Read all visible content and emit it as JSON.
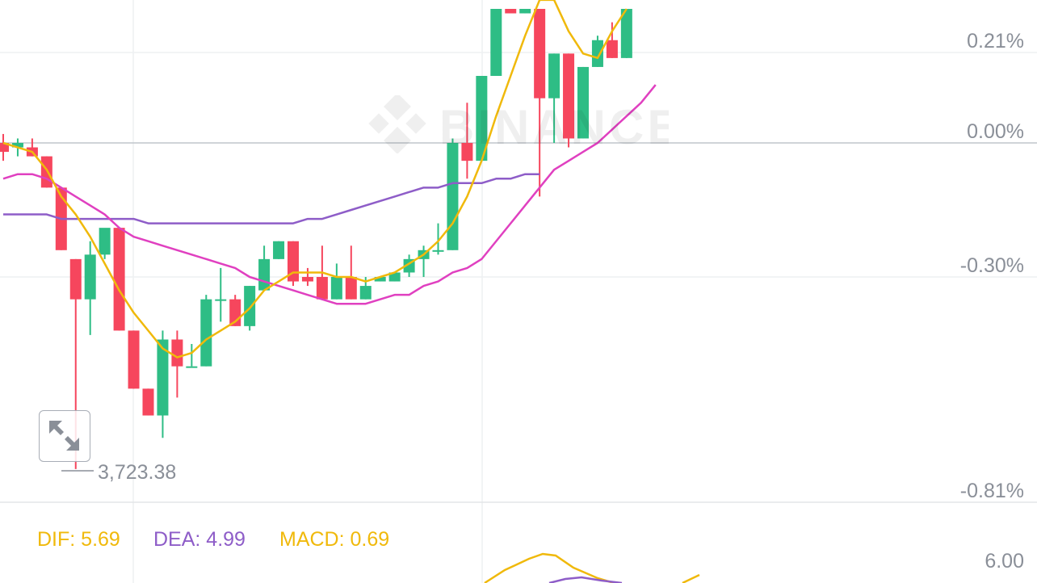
{
  "chart_data": {
    "type": "candlestick",
    "y_axis_labels": [
      {
        "label": "0.21%",
        "value": 0.21
      },
      {
        "label": "0.00%",
        "value": 0.0
      },
      {
        "label": "-0.30%",
        "value": -0.3
      },
      {
        "label": "-0.81%",
        "value": -0.81
      }
    ],
    "baseline_pct": 0.0,
    "low_marker_label": "3,723.38",
    "candles": [
      {
        "o": 0.0,
        "h": 0.02,
        "l": -0.04,
        "c": -0.02
      },
      {
        "o": -0.01,
        "h": 0.01,
        "l": -0.03,
        "c": 0.0
      },
      {
        "o": -0.01,
        "h": 0.01,
        "l": -0.03,
        "c": -0.03
      },
      {
        "o": -0.03,
        "h": -0.03,
        "l": -0.1,
        "c": -0.1
      },
      {
        "o": -0.1,
        "h": -0.11,
        "l": -0.24,
        "c": -0.24
      },
      {
        "o": -0.26,
        "h": -0.26,
        "l": -0.73,
        "c": -0.35
      },
      {
        "o": -0.35,
        "h": -0.22,
        "l": -0.43,
        "c": -0.25
      },
      {
        "o": -0.25,
        "h": -0.2,
        "l": -0.26,
        "c": -0.19
      },
      {
        "o": -0.19,
        "h": -0.19,
        "l": -0.42,
        "c": -0.42
      },
      {
        "o": -0.42,
        "h": -0.42,
        "l": -0.55,
        "c": -0.55
      },
      {
        "o": -0.55,
        "h": -0.55,
        "l": -0.61,
        "c": -0.61
      },
      {
        "o": -0.61,
        "h": -0.42,
        "l": -0.66,
        "c": -0.44
      },
      {
        "o": -0.44,
        "h": -0.42,
        "l": -0.57,
        "c": -0.5
      },
      {
        "o": -0.5,
        "h": -0.45,
        "l": -0.5,
        "c": -0.5
      },
      {
        "o": -0.5,
        "h": -0.34,
        "l": -0.5,
        "c": -0.35
      },
      {
        "o": -0.35,
        "h": -0.28,
        "l": -0.4,
        "c": -0.35
      },
      {
        "o": -0.35,
        "h": -0.34,
        "l": -0.41,
        "c": -0.41
      },
      {
        "o": -0.41,
        "h": -0.32,
        "l": -0.42,
        "c": -0.32
      },
      {
        "o": -0.33,
        "h": -0.23,
        "l": -0.33,
        "c": -0.26
      },
      {
        "o": -0.26,
        "h": -0.22,
        "l": -0.26,
        "c": -0.22
      },
      {
        "o": -0.22,
        "h": -0.22,
        "l": -0.32,
        "c": -0.31
      },
      {
        "o": -0.3,
        "h": -0.28,
        "l": -0.32,
        "c": -0.31
      },
      {
        "o": -0.3,
        "h": -0.23,
        "l": -0.35,
        "c": -0.35
      },
      {
        "o": -0.35,
        "h": -0.27,
        "l": -0.35,
        "c": -0.3
      },
      {
        "o": -0.3,
        "h": -0.23,
        "l": -0.35,
        "c": -0.35
      },
      {
        "o": -0.35,
        "h": -0.3,
        "l": -0.35,
        "c": -0.32
      },
      {
        "o": -0.31,
        "h": -0.3,
        "l": -0.31,
        "c": -0.3
      },
      {
        "o": -0.31,
        "h": -0.3,
        "l": -0.31,
        "c": -0.29
      },
      {
        "o": -0.29,
        "h": -0.25,
        "l": -0.3,
        "c": -0.26
      },
      {
        "o": -0.26,
        "h": -0.23,
        "l": -0.3,
        "c": -0.24
      },
      {
        "o": -0.24,
        "h": -0.18,
        "l": -0.25,
        "c": -0.24
      },
      {
        "o": -0.24,
        "h": 0.01,
        "l": -0.24,
        "c": 0.0
      },
      {
        "o": 0.0,
        "h": 0.09,
        "l": -0.08,
        "c": -0.04
      },
      {
        "o": -0.04,
        "h": 0.15,
        "l": -0.04,
        "c": 0.15
      },
      {
        "o": 0.15,
        "h": 0.3,
        "l": 0.15,
        "c": 0.3
      },
      {
        "o": 0.3,
        "h": 0.3,
        "l": 0.3,
        "c": 0.29
      },
      {
        "o": 0.29,
        "h": 0.3,
        "l": 0.29,
        "c": 0.3
      },
      {
        "o": 0.3,
        "h": 0.3,
        "l": -0.12,
        "c": 0.1
      },
      {
        "o": 0.1,
        "h": 0.2,
        "l": 0.0,
        "c": 0.2
      },
      {
        "o": 0.2,
        "h": 0.2,
        "l": -0.01,
        "c": 0.01
      },
      {
        "o": 0.01,
        "h": 0.17,
        "l": 0.01,
        "c": 0.17
      },
      {
        "o": 0.17,
        "h": 0.24,
        "l": 0.17,
        "c": 0.23
      },
      {
        "o": 0.23,
        "h": 0.27,
        "l": 0.19,
        "c": 0.19
      },
      {
        "o": 0.19,
        "h": 0.3,
        "l": 0.19,
        "c": 0.3
      }
    ],
    "ma_yellow": [
      0.0,
      -0.01,
      -0.02,
      -0.06,
      -0.12,
      -0.16,
      -0.21,
      -0.27,
      -0.33,
      -0.38,
      -0.42,
      -0.46,
      -0.48,
      -0.47,
      -0.44,
      -0.42,
      -0.4,
      -0.37,
      -0.33,
      -0.31,
      -0.29,
      -0.29,
      -0.29,
      -0.3,
      -0.3,
      -0.31,
      -0.3,
      -0.29,
      -0.27,
      -0.25,
      -0.22,
      -0.18,
      -0.12,
      -0.04,
      0.06,
      0.15,
      0.24,
      0.32,
      0.32,
      0.25,
      0.2,
      0.19,
      0.25,
      0.3
    ],
    "ma_magenta": [
      -0.08,
      -0.07,
      -0.07,
      -0.08,
      -0.1,
      -0.12,
      -0.14,
      -0.16,
      -0.19,
      -0.21,
      -0.22,
      -0.23,
      -0.24,
      -0.25,
      -0.26,
      -0.27,
      -0.28,
      -0.3,
      -0.31,
      -0.32,
      -0.33,
      -0.34,
      -0.35,
      -0.36,
      -0.36,
      -0.36,
      -0.35,
      -0.34,
      -0.34,
      -0.32,
      -0.31,
      -0.29,
      -0.28,
      -0.26,
      -0.22,
      -0.18,
      -0.14,
      -0.1,
      -0.06,
      -0.04,
      -0.02,
      0.0,
      0.03,
      0.06,
      0.09,
      0.13
    ],
    "ma_purple": [
      -0.16,
      -0.16,
      -0.16,
      -0.16,
      -0.17,
      -0.17,
      -0.17,
      -0.17,
      -0.17,
      -0.17,
      -0.18,
      -0.18,
      -0.18,
      -0.18,
      -0.18,
      -0.18,
      -0.18,
      -0.18,
      -0.18,
      -0.18,
      -0.18,
      -0.17,
      -0.17,
      -0.16,
      -0.15,
      -0.14,
      -0.13,
      -0.12,
      -0.11,
      -0.1,
      -0.1,
      -0.09,
      -0.09,
      -0.09,
      -0.08,
      -0.08,
      -0.07,
      -0.07
    ]
  },
  "macd": {
    "dif_label": "DIF: 5.69",
    "dea_label": "DEA: 4.99",
    "macd_label": "MACD: 0.69",
    "axis_label": "6.00"
  },
  "watermark": "BINANCE",
  "colors": {
    "up": "#2ebd85",
    "down": "#f6465d",
    "ma_yellow": "#f0b90b",
    "ma_magenta": "#e040c0",
    "ma_purple": "#8e5dc8",
    "grid": "#e6e8ea",
    "baseline": "#c0c6cc",
    "axis_text": "#8a8f98"
  },
  "icons": {
    "expand": "expand-arrows-icon"
  }
}
